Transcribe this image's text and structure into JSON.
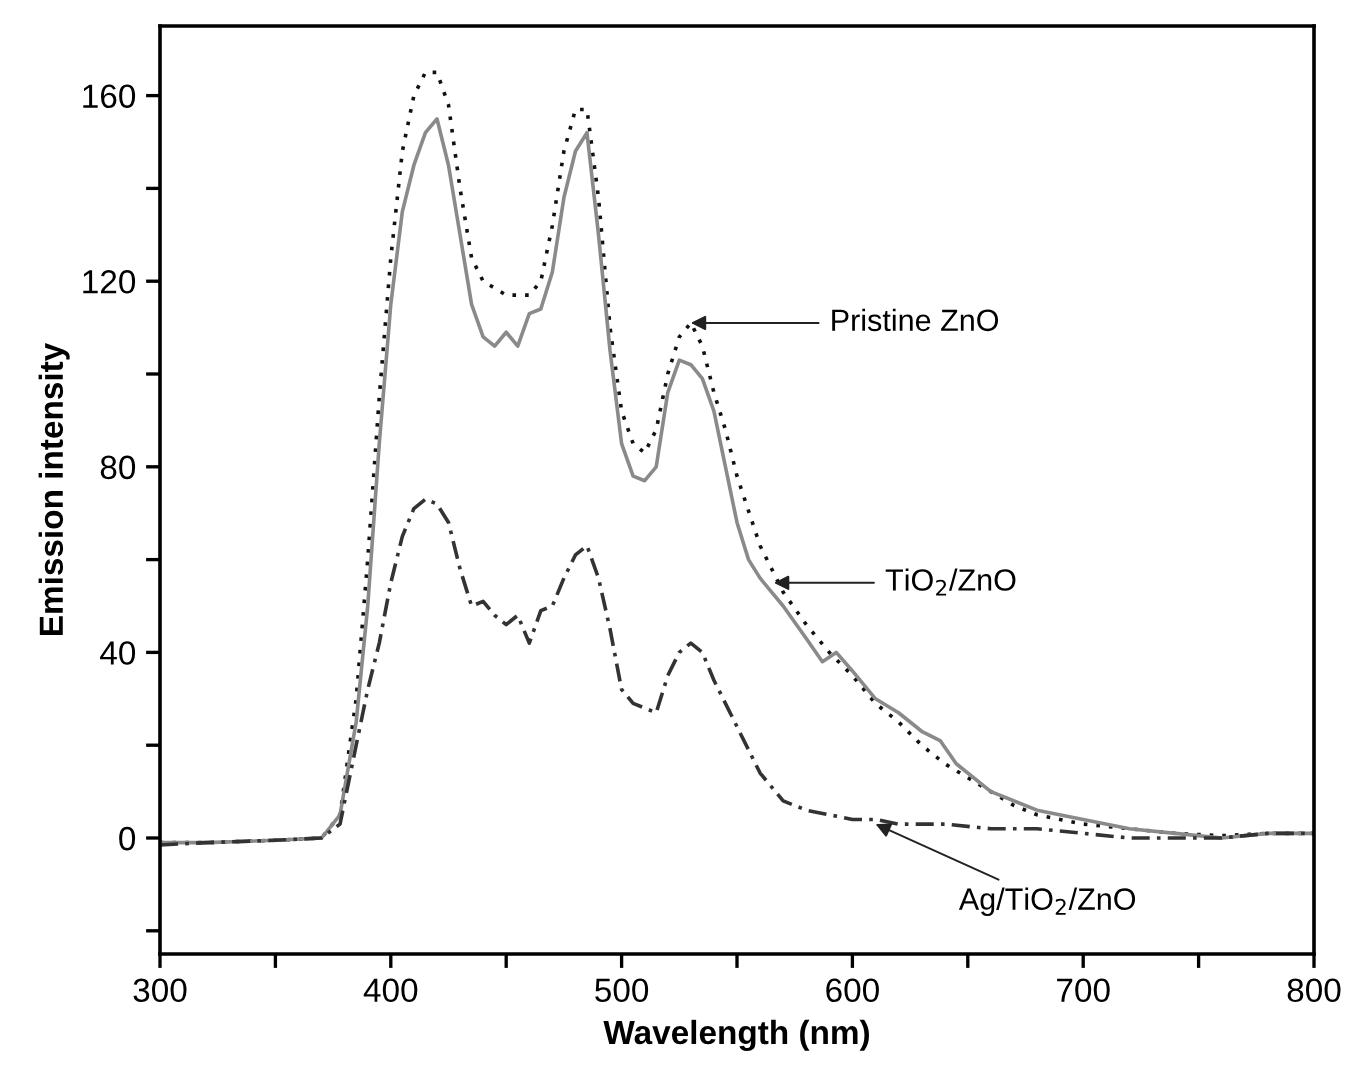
{
  "chart_data": {
    "type": "line",
    "xlabel": "Wavelength (nm)",
    "ylabel": "Emission intensity",
    "xlim": [
      300,
      800
    ],
    "ylim": [
      -25,
      175
    ],
    "xticks": [
      300,
      {
        "value": 350,
        "label": null
      },
      400,
      {
        "value": 450,
        "label": null
      },
      500,
      {
        "value": 550,
        "label": null
      },
      600,
      {
        "value": 650,
        "label": null
      },
      700,
      {
        "value": 750,
        "label": null
      },
      800
    ],
    "yticks": [
      {
        "value": -20,
        "label": null
      },
      0,
      {
        "value": 20,
        "label": null
      },
      40,
      {
        "value": 60,
        "label": null
      },
      80,
      {
        "value": 100,
        "label": null
      },
      120,
      {
        "value": 140,
        "label": null
      },
      160
    ],
    "grid": false,
    "legend": false,
    "marker": "none",
    "series": [
      {
        "color": "#111111",
        "line_style": "dotted",
        "x": [
          300,
          320,
          350,
          370,
          378,
          385,
          390,
          395,
          400,
          405,
          410,
          415,
          420,
          425,
          430,
          435,
          440,
          450,
          460,
          465,
          470,
          475,
          480,
          485,
          490,
          495,
          500,
          505,
          510,
          515,
          520,
          525,
          530,
          535,
          540,
          545,
          550,
          560,
          570,
          580,
          590,
          600,
          610,
          620,
          630,
          640,
          650,
          660,
          670,
          680,
          690,
          700,
          720,
          740,
          760,
          780,
          800
        ],
        "values": [
          -1,
          -1,
          -0.5,
          0,
          5,
          30,
          60,
          95,
          125,
          148,
          160,
          165,
          165,
          158,
          140,
          125,
          120,
          117,
          117,
          120,
          132,
          148,
          157,
          157,
          138,
          110,
          92,
          85,
          83,
          88,
          100,
          108,
          111,
          106,
          96,
          88,
          78,
          63,
          53,
          46,
          40,
          35,
          29,
          25,
          20,
          16,
          13,
          10,
          7,
          5,
          4,
          3,
          2,
          1,
          0.5,
          1,
          1
        ]
      },
      {
        "color": "#8a8a8a",
        "line_style": "solid",
        "x": [
          300,
          320,
          350,
          370,
          378,
          385,
          390,
          395,
          400,
          405,
          410,
          415,
          420,
          425,
          430,
          435,
          440,
          445,
          450,
          455,
          460,
          465,
          470,
          475,
          480,
          485,
          490,
          495,
          500,
          505,
          510,
          515,
          520,
          525,
          530,
          535,
          540,
          545,
          550,
          555,
          560,
          565,
          570,
          580,
          587,
          593,
          600,
          610,
          620,
          630,
          638,
          645,
          660,
          680,
          700,
          720,
          740,
          760,
          780,
          800
        ],
        "values": [
          -1,
          -1,
          -0.5,
          0,
          5,
          25,
          50,
          85,
          115,
          135,
          145,
          152,
          155,
          145,
          130,
          115,
          108,
          106,
          109,
          106,
          113,
          114,
          122,
          138,
          148,
          152,
          130,
          105,
          85,
          78,
          77,
          80,
          96,
          103,
          102,
          99,
          92,
          80,
          68,
          60,
          56,
          53,
          50,
          43,
          38,
          40,
          36,
          30,
          27,
          23,
          21,
          16,
          10,
          6,
          4,
          2,
          1,
          0,
          1,
          1
        ]
      },
      {
        "color": "#333333",
        "line_style": "dashed",
        "x": [
          300,
          320,
          350,
          370,
          378,
          385,
          390,
          395,
          400,
          405,
          410,
          415,
          420,
          425,
          430,
          435,
          440,
          445,
          450,
          455,
          460,
          465,
          470,
          475,
          480,
          485,
          490,
          495,
          500,
          505,
          510,
          515,
          520,
          525,
          530,
          535,
          540,
          550,
          560,
          570,
          580,
          590,
          600,
          610,
          620,
          640,
          660,
          680,
          700,
          720,
          740,
          760,
          780,
          800
        ],
        "values": [
          -1.5,
          -1,
          -0.5,
          0,
          3,
          20,
          32,
          42,
          55,
          65,
          71,
          73,
          72,
          68,
          58,
          50,
          51,
          48,
          46,
          48,
          42,
          49,
          50,
          56,
          61,
          63,
          56,
          45,
          32,
          29,
          28,
          27,
          35,
          40,
          42,
          40,
          34,
          24,
          14,
          8,
          6,
          5,
          4,
          4,
          3,
          3,
          2,
          2,
          1,
          0,
          0,
          0,
          1,
          1
        ]
      }
    ],
    "annotations": [
      {
        "text": "Pristine ZnO",
        "x": 530,
        "y": 111
      },
      {
        "text": "TiO$_{2}$/ZnO",
        "x": 566,
        "y": 55
      },
      {
        "text": "Ag/TiO$_{2}$/ZnO",
        "x": 610,
        "y": 3
      }
    ]
  }
}
